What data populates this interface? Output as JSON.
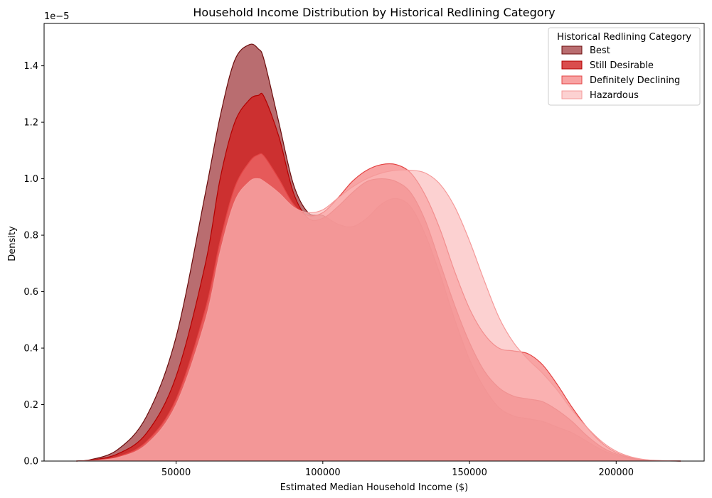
{
  "chart_data": {
    "type": "area",
    "title": "Household Income Distribution by Historical Redlining Category",
    "xlabel": "Estimated Median Household Income ($)",
    "ylabel": "Density",
    "y_offset_label": "1e−5",
    "xlim": [
      5000,
      230000
    ],
    "ylim": [
      0,
      1.55
    ],
    "x_ticks": [
      50000,
      100000,
      150000,
      200000
    ],
    "x_tick_labels": [
      "50000",
      "100000",
      "150000",
      "200000"
    ],
    "y_ticks": [
      0,
      0.2,
      0.4,
      0.6,
      0.8,
      1.0,
      1.2,
      1.4
    ],
    "y_tick_labels": [
      "0.0",
      "0.2",
      "0.4",
      "0.6",
      "0.8",
      "1.0",
      "1.2",
      "1.4"
    ],
    "legend_title": "Historical Redlining Category",
    "legend_position": "top-right",
    "grid": false,
    "x": [
      16000,
      20000,
      30000,
      40000,
      50000,
      60000,
      65000,
      70000,
      75000,
      78000,
      80000,
      85000,
      90000,
      95000,
      100000,
      105000,
      110000,
      115000,
      120000,
      125000,
      130000,
      135000,
      140000,
      145000,
      150000,
      155000,
      160000,
      165000,
      170000,
      175000,
      180000,
      185000,
      190000,
      195000,
      200000,
      205000,
      210000,
      215000,
      222000
    ],
    "series": [
      {
        "name": "Best",
        "fill": "#a8484c",
        "stroke": "#6b0d0d",
        "opacity": 0.8,
        "values": [
          0,
          0.003,
          0.04,
          0.16,
          0.44,
          0.95,
          1.22,
          1.42,
          1.475,
          1.46,
          1.42,
          1.2,
          0.98,
          0.88,
          0.87,
          0.84,
          0.83,
          0.86,
          0.91,
          0.93,
          0.9,
          0.8,
          0.66,
          0.5,
          0.36,
          0.26,
          0.19,
          0.16,
          0.15,
          0.14,
          0.12,
          0.1,
          0.07,
          0.04,
          0.02,
          0.007,
          0.002,
          0.0005,
          0
        ]
      },
      {
        "name": "Still Desirable",
        "fill": "#d12121",
        "stroke": "#b30000",
        "opacity": 0.8,
        "values": [
          0,
          0.002,
          0.025,
          0.1,
          0.3,
          0.7,
          1.0,
          1.2,
          1.28,
          1.295,
          1.29,
          1.15,
          0.95,
          0.86,
          0.86,
          0.9,
          0.95,
          0.99,
          1.0,
          0.99,
          0.95,
          0.85,
          0.7,
          0.55,
          0.42,
          0.32,
          0.26,
          0.23,
          0.22,
          0.21,
          0.18,
          0.14,
          0.09,
          0.05,
          0.025,
          0.01,
          0.003,
          0.001,
          0
        ]
      },
      {
        "name": "Definitely Declining",
        "fill": "#f47272",
        "stroke": "#e34444",
        "opacity": 0.65,
        "values": [
          0,
          0.001,
          0.015,
          0.07,
          0.22,
          0.54,
          0.78,
          0.97,
          1.06,
          1.085,
          1.08,
          1.0,
          0.91,
          0.87,
          0.88,
          0.93,
          0.99,
          1.03,
          1.05,
          1.05,
          1.02,
          0.94,
          0.82,
          0.67,
          0.54,
          0.45,
          0.4,
          0.39,
          0.38,
          0.34,
          0.27,
          0.19,
          0.12,
          0.065,
          0.03,
          0.012,
          0.004,
          0.001,
          0
        ]
      },
      {
        "name": "Hazardous",
        "fill": "#fbb8b8",
        "stroke": "#f59a9a",
        "opacity": 0.65,
        "values": [
          0,
          0.001,
          0.012,
          0.06,
          0.2,
          0.5,
          0.74,
          0.92,
          0.99,
          1.0,
          0.99,
          0.95,
          0.9,
          0.88,
          0.89,
          0.93,
          0.97,
          1.0,
          1.02,
          1.03,
          1.03,
          1.02,
          0.98,
          0.9,
          0.78,
          0.64,
          0.51,
          0.42,
          0.36,
          0.31,
          0.25,
          0.18,
          0.12,
          0.07,
          0.035,
          0.015,
          0.005,
          0.002,
          0
        ]
      }
    ]
  }
}
